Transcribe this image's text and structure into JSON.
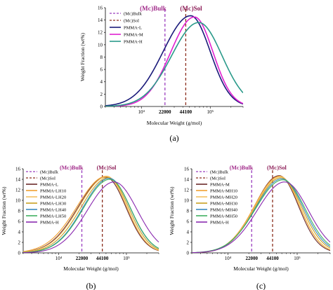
{
  "colors": {
    "bulk_line": "#9b3fbf",
    "sol_line": "#8b2f1f",
    "bulk_label": "#a12a8a",
    "sol_label": "#8b1a55",
    "value_label": "#a12a8a",
    "axis": "#000000"
  },
  "chart_data": [
    {
      "panel": "a",
      "panel_label": "(a)",
      "type": "line",
      "x_scale": "log",
      "xlabel": "Molecular Weight (g/mol)",
      "ylabel": "Weight Fraction (wt%)",
      "xlim": [
        3000,
        300000
      ],
      "ylim": [
        0,
        16
      ],
      "y_ticks": [
        "0",
        "2",
        "4",
        "6",
        "8",
        "10",
        "12",
        "14",
        "16"
      ],
      "x_ticks": [
        {
          "x": 10000,
          "label": "10⁴"
        },
        {
          "x": 22000,
          "label": "22000",
          "colored": true
        },
        {
          "x": 44100,
          "label": "44100",
          "colored": true
        },
        {
          "x": 100000,
          "label": "10⁵"
        }
      ],
      "markers": [
        {
          "x": 22000,
          "role": "bulk",
          "label": "(Mᴄ)Bulk"
        },
        {
          "x": 44100,
          "role": "sol",
          "label": "(Mᴄ)Sol"
        }
      ],
      "legend": [
        {
          "label": "(Mᴄ)Bulk",
          "style": "dash",
          "role": "bulk"
        },
        {
          "label": "(Mᴄ)Sol",
          "style": "dash",
          "role": "sol"
        },
        {
          "label": "PMMA-L",
          "style": "solid",
          "color": "#1a1a7a"
        },
        {
          "label": "PMMA-M",
          "style": "solid",
          "color": "#e020d0"
        },
        {
          "label": "PMMA-H",
          "style": "solid",
          "color": "#2a9a8a"
        }
      ],
      "series": [
        {
          "name": "PMMA-L",
          "color": "#1a1a7a",
          "peak_x": 52000,
          "peak_y": 14.7,
          "sigma": 0.33,
          "skew": 0.07
        },
        {
          "name": "PMMA-M",
          "color": "#e020d0",
          "peak_x": 59000,
          "peak_y": 14.5,
          "sigma": 0.3,
          "skew": 0.05
        },
        {
          "name": "PMMA-H",
          "color": "#2a9a8a",
          "peak_x": 68000,
          "peak_y": 13.6,
          "sigma": 0.36,
          "skew": 0.03
        }
      ]
    },
    {
      "panel": "b",
      "panel_label": "(b)",
      "type": "line",
      "x_scale": "log",
      "xlabel": "Molecular Weight (g/mol)",
      "ylabel": "Weight Fraction (wt%)",
      "xlim": [
        3000,
        300000
      ],
      "ylim": [
        0,
        16
      ],
      "y_ticks": [
        "0",
        "2",
        "4",
        "6",
        "8",
        "10",
        "12",
        "14",
        "16"
      ],
      "x_ticks": [
        {
          "x": 10000,
          "label": "10⁴"
        },
        {
          "x": 22000,
          "label": "22000",
          "colored": true
        },
        {
          "x": 44100,
          "label": "44100",
          "colored": true
        },
        {
          "x": 100000,
          "label": "10⁵"
        }
      ],
      "markers": [
        {
          "x": 22000,
          "role": "bulk",
          "label": "(Mᴄ)Bulk"
        },
        {
          "x": 44100,
          "role": "sol",
          "label": "(Mᴄ)Sol"
        }
      ],
      "legend": [
        {
          "label": "(Mᴄ)Bulk",
          "style": "dash",
          "role": "bulk"
        },
        {
          "label": "(Mᴄ)Sol",
          "style": "dash",
          "role": "sol"
        },
        {
          "label": "PMMA-L",
          "style": "solid",
          "color": "#6a2a2a"
        },
        {
          "label": "PMMA-LH10",
          "style": "solid",
          "color": "#f0a030"
        },
        {
          "label": "PMMA-LH20",
          "style": "solid",
          "color": "#f4c060"
        },
        {
          "label": "PMMA-LH30",
          "style": "solid",
          "color": "#c8a020"
        },
        {
          "label": "PMMA-LH40",
          "style": "solid",
          "color": "#3a8ac0"
        },
        {
          "label": "PMMA-LH50",
          "style": "solid",
          "color": "#40b060"
        },
        {
          "label": "PMMA-H",
          "style": "solid",
          "color": "#8a2ab0"
        }
      ],
      "series": [
        {
          "name": "PMMA-L",
          "color": "#6a2a2a",
          "peak_x": 50000,
          "peak_y": 14.4,
          "sigma": 0.34,
          "skew": 0.07
        },
        {
          "name": "PMMA-LH10",
          "color": "#f0a030",
          "peak_x": 51000,
          "peak_y": 14.6,
          "sigma": 0.35,
          "skew": 0.08
        },
        {
          "name": "PMMA-LH20",
          "color": "#f4c060",
          "peak_x": 52000,
          "peak_y": 14.5,
          "sigma": 0.34,
          "skew": 0.07
        },
        {
          "name": "PMMA-LH30",
          "color": "#c8a020",
          "peak_x": 54000,
          "peak_y": 14.3,
          "sigma": 0.34,
          "skew": 0.06
        },
        {
          "name": "PMMA-LH40",
          "color": "#3a8ac0",
          "peak_x": 56000,
          "peak_y": 14.2,
          "sigma": 0.34,
          "skew": 0.05
        },
        {
          "name": "PMMA-LH50",
          "color": "#40b060",
          "peak_x": 57000,
          "peak_y": 14.0,
          "sigma": 0.34,
          "skew": 0.05
        },
        {
          "name": "PMMA-H",
          "color": "#8a2ab0",
          "peak_x": 66000,
          "peak_y": 13.5,
          "sigma": 0.36,
          "skew": 0.03
        }
      ]
    },
    {
      "panel": "c",
      "panel_label": "(c)",
      "type": "line",
      "x_scale": "log",
      "xlabel": "Molecular Weight (g/mol)",
      "ylabel": "Weight Fraction (wt%)",
      "xlim": [
        3000,
        300000
      ],
      "ylim": [
        0,
        16
      ],
      "y_ticks": [
        "0",
        "2",
        "4",
        "6",
        "8",
        "10",
        "12",
        "14",
        "16"
      ],
      "x_ticks": [
        {
          "x": 10000,
          "label": "10⁴"
        },
        {
          "x": 22000,
          "label": "22000",
          "colored": true
        },
        {
          "x": 44100,
          "label": "44100",
          "colored": true
        },
        {
          "x": 100000,
          "label": "10⁵"
        }
      ],
      "markers": [
        {
          "x": 22000,
          "role": "bulk",
          "label": "(Mᴄ)Bulk"
        },
        {
          "x": 44100,
          "role": "sol",
          "label": "(Mᴄ)Sol"
        }
      ],
      "legend": [
        {
          "label": "(Mᴄ)Bulk",
          "style": "dash",
          "role": "bulk"
        },
        {
          "label": "(Mᴄ)Sol",
          "style": "dash",
          "role": "sol"
        },
        {
          "label": "PMMA-M",
          "style": "solid",
          "color": "#6a2a2a"
        },
        {
          "label": "PMMA-MH10",
          "style": "solid",
          "color": "#f0a030"
        },
        {
          "label": "PMMA-MH20",
          "style": "solid",
          "color": "#f4c060"
        },
        {
          "label": "PMMA-MH30",
          "style": "solid",
          "color": "#c8a020"
        },
        {
          "label": "PMMA-MH40",
          "style": "solid",
          "color": "#3a8ac0"
        },
        {
          "label": "PMMA-MH50",
          "style": "solid",
          "color": "#40b060"
        },
        {
          "label": "PMMA-H",
          "style": "solid",
          "color": "#8a2ab0"
        }
      ],
      "series": [
        {
          "name": "PMMA-M",
          "color": "#6a2a2a",
          "peak_x": 55000,
          "peak_y": 14.7,
          "sigma": 0.31,
          "skew": 0.05
        },
        {
          "name": "PMMA-MH10",
          "color": "#f0a030",
          "peak_x": 56000,
          "peak_y": 14.6,
          "sigma": 0.32,
          "skew": 0.05
        },
        {
          "name": "PMMA-MH20",
          "color": "#f4c060",
          "peak_x": 57000,
          "peak_y": 14.5,
          "sigma": 0.32,
          "skew": 0.05
        },
        {
          "name": "PMMA-MH30",
          "color": "#c8a020",
          "peak_x": 58000,
          "peak_y": 14.3,
          "sigma": 0.33,
          "skew": 0.04
        },
        {
          "name": "PMMA-MH40",
          "color": "#3a8ac0",
          "peak_x": 60000,
          "peak_y": 14.1,
          "sigma": 0.34,
          "skew": 0.04
        },
        {
          "name": "PMMA-MH50",
          "color": "#40b060",
          "peak_x": 62000,
          "peak_y": 13.9,
          "sigma": 0.35,
          "skew": 0.04
        },
        {
          "name": "PMMA-H",
          "color": "#8a2ab0",
          "peak_x": 66000,
          "peak_y": 13.5,
          "sigma": 0.36,
          "skew": 0.03
        }
      ]
    }
  ]
}
